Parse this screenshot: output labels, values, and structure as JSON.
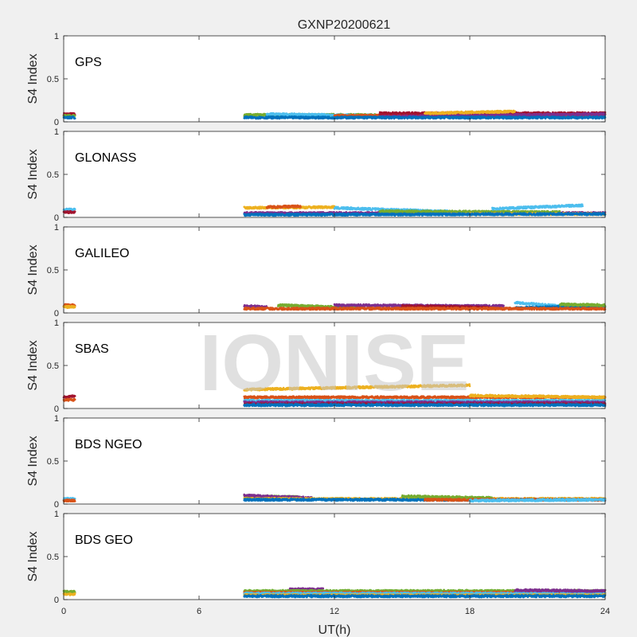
{
  "figure": {
    "title": "GXNP20200621",
    "xlabel": "UT(h)",
    "watermark": "IONISE"
  },
  "chart_data": {
    "type": "scatter",
    "title": "GXNP20200621",
    "xlabel": "UT(h)",
    "ylabel": "S4 Index",
    "xlim": [
      0,
      24
    ],
    "ylim": [
      0,
      1
    ],
    "xticks": [
      0,
      6,
      12,
      18,
      24
    ],
    "yticks": [
      0,
      0.5,
      1
    ],
    "yticklabels": [
      "0",
      "0.5",
      "1"
    ],
    "grid": false,
    "colors": [
      "#0072BD",
      "#D95319",
      "#EDB120",
      "#7E2F8E",
      "#77AC30",
      "#4DBEEE",
      "#A2142F"
    ],
    "panels": [
      {
        "label": "GPS",
        "segments": [
          {
            "color": "#A2142F",
            "x": [
              0,
              0.5
            ],
            "y": [
              0.09,
              0.09
            ]
          },
          {
            "color": "#77AC30",
            "x": [
              0,
              0.5
            ],
            "y": [
              0.07,
              0.07
            ]
          },
          {
            "color": "#0072BD",
            "x": [
              0,
              0.5
            ],
            "y": [
              0.05,
              0.05
            ]
          },
          {
            "color": "#77AC30",
            "x": [
              8,
              24
            ],
            "y": [
              0.08,
              0.08
            ]
          },
          {
            "color": "#4DBEEE",
            "x": [
              9,
              14
            ],
            "y": [
              0.09,
              0.07
            ]
          },
          {
            "color": "#D95319",
            "x": [
              12,
              24
            ],
            "y": [
              0.07,
              0.08
            ]
          },
          {
            "color": "#A2142F",
            "x": [
              14,
              24
            ],
            "y": [
              0.1,
              0.1
            ]
          },
          {
            "color": "#7E2F8E",
            "x": [
              14,
              24
            ],
            "y": [
              0.06,
              0.09
            ]
          },
          {
            "color": "#0072BD",
            "x": [
              8,
              24
            ],
            "y": [
              0.05,
              0.05
            ]
          },
          {
            "color": "#EDB120",
            "x": [
              16,
              20
            ],
            "y": [
              0.1,
              0.12
            ]
          }
        ]
      },
      {
        "label": "GLONASS",
        "segments": [
          {
            "color": "#4DBEEE",
            "x": [
              0,
              0.5
            ],
            "y": [
              0.09,
              0.09
            ]
          },
          {
            "color": "#A2142F",
            "x": [
              0,
              0.5
            ],
            "y": [
              0.06,
              0.06
            ]
          },
          {
            "color": "#EDB120",
            "x": [
              8,
              12
            ],
            "y": [
              0.11,
              0.12
            ]
          },
          {
            "color": "#D95319",
            "x": [
              9,
              10.5
            ],
            "y": [
              0.12,
              0.13
            ]
          },
          {
            "color": "#7E2F8E",
            "x": [
              8,
              24
            ],
            "y": [
              0.05,
              0.05
            ]
          },
          {
            "color": "#4DBEEE",
            "x": [
              12,
              17
            ],
            "y": [
              0.11,
              0.07
            ]
          },
          {
            "color": "#77AC30",
            "x": [
              14,
              22
            ],
            "y": [
              0.07,
              0.06
            ]
          },
          {
            "color": "#4DBEEE",
            "x": [
              19,
              23
            ],
            "y": [
              0.1,
              0.14
            ]
          },
          {
            "color": "#EDB120",
            "x": [
              17,
              24
            ],
            "y": [
              0.04,
              0.04
            ]
          },
          {
            "color": "#0072BD",
            "x": [
              8,
              24
            ],
            "y": [
              0.03,
              0.04
            ]
          }
        ]
      },
      {
        "label": "GALILEO",
        "segments": [
          {
            "color": "#D95319",
            "x": [
              0,
              0.5
            ],
            "y": [
              0.09,
              0.09
            ]
          },
          {
            "color": "#EDB120",
            "x": [
              0,
              0.5
            ],
            "y": [
              0.07,
              0.07
            ]
          },
          {
            "color": "#7E2F8E",
            "x": [
              8,
              9
            ],
            "y": [
              0.08,
              0.07
            ]
          },
          {
            "color": "#77AC30",
            "x": [
              9.5,
              13
            ],
            "y": [
              0.09,
              0.06
            ]
          },
          {
            "color": "#7E2F8E",
            "x": [
              12,
              19.5
            ],
            "y": [
              0.09,
              0.08
            ]
          },
          {
            "color": "#A2142F",
            "x": [
              15,
              19
            ],
            "y": [
              0.08,
              0.06
            ]
          },
          {
            "color": "#4DBEEE",
            "x": [
              20,
              22
            ],
            "y": [
              0.12,
              0.08
            ]
          },
          {
            "color": "#0072BD",
            "x": [
              20,
              24
            ],
            "y": [
              0.06,
              0.08
            ]
          },
          {
            "color": "#D95319",
            "x": [
              8,
              24
            ],
            "y": [
              0.05,
              0.05
            ]
          },
          {
            "color": "#77AC30",
            "x": [
              22,
              24
            ],
            "y": [
              0.1,
              0.09
            ]
          }
        ]
      },
      {
        "label": "SBAS",
        "segments": [
          {
            "color": "#A2142F",
            "x": [
              0,
              0.5
            ],
            "y": [
              0.13,
              0.15
            ]
          },
          {
            "color": "#D95319",
            "x": [
              0,
              0.5
            ],
            "y": [
              0.1,
              0.1
            ]
          },
          {
            "color": "#EDB120",
            "x": [
              8,
              18
            ],
            "y": [
              0.22,
              0.27
            ]
          },
          {
            "color": "#D95319",
            "x": [
              8,
              24
            ],
            "y": [
              0.13,
              0.13
            ]
          },
          {
            "color": "#4DBEEE",
            "x": [
              8,
              24
            ],
            "y": [
              0.09,
              0.09
            ]
          },
          {
            "color": "#7E2F8E",
            "x": [
              8,
              24
            ],
            "y": [
              0.07,
              0.07
            ]
          },
          {
            "color": "#A2142F",
            "x": [
              8,
              24
            ],
            "y": [
              0.05,
              0.05
            ]
          },
          {
            "color": "#0072BD",
            "x": [
              8,
              24
            ],
            "y": [
              0.04,
              0.04
            ]
          },
          {
            "color": "#EDB120",
            "x": [
              18,
              24
            ],
            "y": [
              0.15,
              0.13
            ]
          }
        ]
      },
      {
        "label": "BDS NGEO",
        "segments": [
          {
            "color": "#4DBEEE",
            "x": [
              0,
              0.5
            ],
            "y": [
              0.06,
              0.06
            ]
          },
          {
            "color": "#D95319",
            "x": [
              0,
              0.5
            ],
            "y": [
              0.04,
              0.04
            ]
          },
          {
            "color": "#77AC30",
            "x": [
              8,
              10.5
            ],
            "y": [
              0.09,
              0.08
            ]
          },
          {
            "color": "#7E2F8E",
            "x": [
              8,
              11
            ],
            "y": [
              0.1,
              0.07
            ]
          },
          {
            "color": "#EDB120",
            "x": [
              8,
              24
            ],
            "y": [
              0.06,
              0.06
            ]
          },
          {
            "color": "#0072BD",
            "x": [
              8,
              24
            ],
            "y": [
              0.05,
              0.05
            ]
          },
          {
            "color": "#77AC30",
            "x": [
              15,
              19
            ],
            "y": [
              0.09,
              0.07
            ]
          },
          {
            "color": "#D95319",
            "x": [
              16,
              24
            ],
            "y": [
              0.05,
              0.05
            ]
          },
          {
            "color": "#4DBEEE",
            "x": [
              18,
              24
            ],
            "y": [
              0.04,
              0.05
            ]
          }
        ]
      },
      {
        "label": "BDS GEO",
        "segments": [
          {
            "color": "#77AC30",
            "x": [
              0,
              0.5
            ],
            "y": [
              0.09,
              0.09
            ]
          },
          {
            "color": "#EDB120",
            "x": [
              0,
              0.5
            ],
            "y": [
              0.06,
              0.06
            ]
          },
          {
            "color": "#7E2F8E",
            "x": [
              10,
              11.5
            ],
            "y": [
              0.12,
              0.12
            ]
          },
          {
            "color": "#77AC30",
            "x": [
              8,
              24
            ],
            "y": [
              0.1,
              0.1
            ]
          },
          {
            "color": "#D95319",
            "x": [
              8,
              24
            ],
            "y": [
              0.08,
              0.08
            ]
          },
          {
            "color": "#4DBEEE",
            "x": [
              8,
              24
            ],
            "y": [
              0.07,
              0.07
            ]
          },
          {
            "color": "#EDB120",
            "x": [
              8,
              24
            ],
            "y": [
              0.05,
              0.05
            ]
          },
          {
            "color": "#0072BD",
            "x": [
              8,
              24
            ],
            "y": [
              0.04,
              0.04
            ]
          },
          {
            "color": "#7E2F8E",
            "x": [
              20,
              24
            ],
            "y": [
              0.11,
              0.1
            ]
          }
        ]
      }
    ]
  }
}
